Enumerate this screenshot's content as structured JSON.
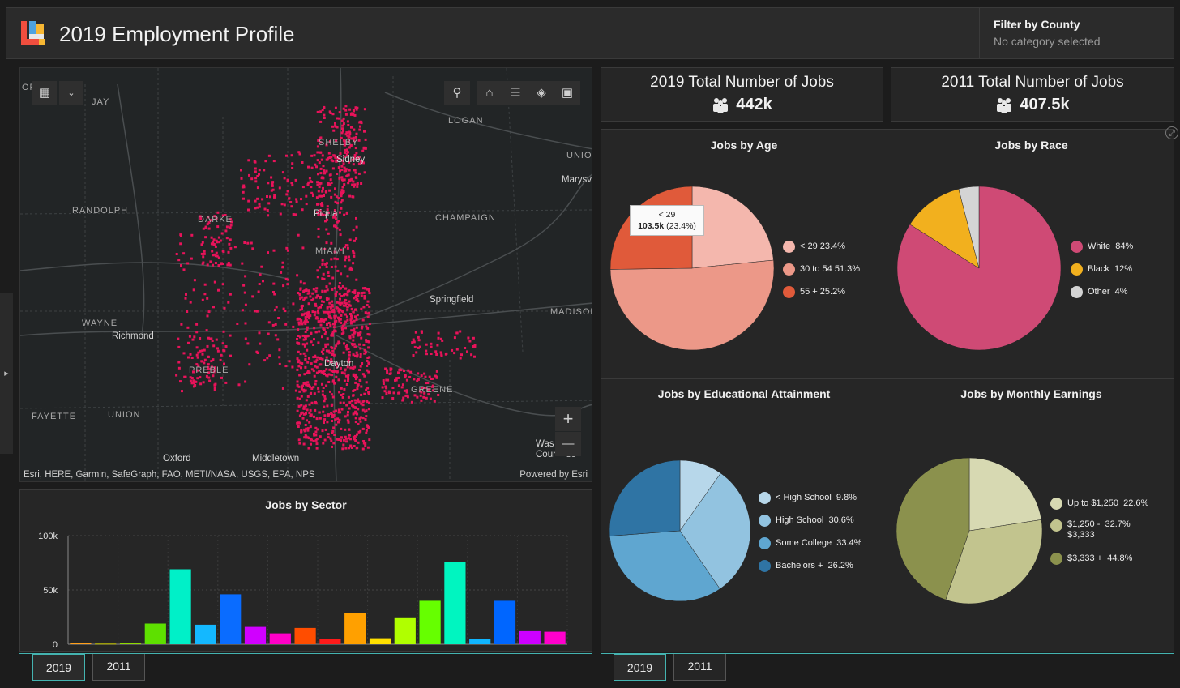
{
  "app": {
    "title": "2019 Employment Profile"
  },
  "filter": {
    "title": "Filter by County",
    "status": "No category selected"
  },
  "map": {
    "region_labels": [
      "JAY",
      "LOGAN",
      "UNION",
      "RANDOLPH",
      "DARKE",
      "CHAMPAIGN",
      "MIAMI",
      "SHELBY",
      "MADISON",
      "WAYNE",
      "PREBLE",
      "GREENE",
      "FAYETTE",
      "UNION"
    ],
    "city_labels": [
      "Sidney",
      "Piqua",
      "Marysv",
      "Springfield",
      "Richmond",
      "Dayton",
      "Oxford",
      "Middletown",
      "Was    on",
      "Cour    se"
    ],
    "attribution": "Esri, HERE, Garmin, SafeGraph, FAO, METI/NASA, USGS, EPA, NPS",
    "powered_by": "Powered by Esri",
    "corner_label": "ORD",
    "zoom_in": "+",
    "zoom_out": "—"
  },
  "kpi": {
    "jobs_2019": {
      "title": "2019 Total Number of Jobs",
      "value": "442k"
    },
    "jobs_2011": {
      "title": "2011 Total Number of Jobs",
      "value": "407.5k"
    }
  },
  "charts": {
    "age": {
      "title": "Jobs by Age",
      "legend": [
        {
          "label": "< 29",
          "pct": "23.4%",
          "color": "#f4b7ad"
        },
        {
          "label": "30 to 54",
          "pct": "51.3%",
          "color": "#ec9888"
        },
        {
          "label": "55 +",
          "pct": "25.2%",
          "color": "#e05a3a"
        }
      ],
      "tooltip": {
        "label": "< 29",
        "value": "103.5k",
        "pct": "(23.4%)"
      }
    },
    "race": {
      "title": "Jobs by Race",
      "legend": [
        {
          "label": "White",
          "pct": "84%",
          "color": "#cf4a75"
        },
        {
          "label": "Black",
          "pct": "12%",
          "color": "#f2b01e"
        },
        {
          "label": "Other",
          "pct": "4%",
          "color": "#d4d4d4"
        }
      ]
    },
    "education": {
      "title": "Jobs by Educational Attainment",
      "legend": [
        {
          "label": "< High School",
          "pct": "9.8%",
          "color": "#b7d7ea"
        },
        {
          "label": "High School",
          "pct": "30.6%",
          "color": "#92c3e0"
        },
        {
          "label": "Some College",
          "pct": "33.4%",
          "color": "#5fa6d0"
        },
        {
          "label": "Bachelors +",
          "pct": "26.2%",
          "color": "#2f74a4"
        }
      ]
    },
    "earnings": {
      "title": "Jobs by Monthly Earnings",
      "legend": [
        {
          "label": "Up to $1,250",
          "pct": "22.6%",
          "color": "#d7d9b2"
        },
        {
          "label": "$1,250 -",
          "label2": "$3,333",
          "pct": "32.7%",
          "color": "#c2c48e"
        },
        {
          "label": "$3,333 +",
          "pct": "44.8%",
          "color": "#8b914d"
        }
      ]
    },
    "sector": {
      "title": "Jobs by Sector",
      "y_ticks": [
        "100k",
        "50k",
        "0"
      ]
    }
  },
  "tabs_left": [
    {
      "label": "2019"
    },
    {
      "label": "2011"
    }
  ],
  "tabs_right": [
    {
      "label": "2019"
    },
    {
      "label": "2011"
    }
  ],
  "chart_data": [
    {
      "type": "pie",
      "title": "Jobs by Age",
      "categories": [
        "< 29",
        "30 to 54",
        "55 +"
      ],
      "values": [
        23.4,
        51.3,
        25.2
      ],
      "colors": [
        "#f4b7ad",
        "#ec9888",
        "#e05a3a"
      ]
    },
    {
      "type": "pie",
      "title": "Jobs by Race",
      "categories": [
        "White",
        "Black",
        "Other"
      ],
      "values": [
        84,
        12,
        4
      ],
      "colors": [
        "#cf4a75",
        "#f2b01e",
        "#d4d4d4"
      ]
    },
    {
      "type": "pie",
      "title": "Jobs by Educational Attainment",
      "categories": [
        "< High School",
        "High School",
        "Some College",
        "Bachelors +"
      ],
      "values": [
        9.8,
        30.6,
        33.4,
        26.2
      ],
      "colors": [
        "#b7d7ea",
        "#92c3e0",
        "#5fa6d0",
        "#2f74a4"
      ]
    },
    {
      "type": "pie",
      "title": "Jobs by Monthly Earnings",
      "categories": [
        "Up to $1,250",
        "$1,250 - $3,333",
        "$3,333 +"
      ],
      "values": [
        22.6,
        32.7,
        44.8
      ],
      "colors": [
        "#d7d9b2",
        "#c2c48e",
        "#8b914d"
      ]
    },
    {
      "type": "bar",
      "title": "Jobs by Sector",
      "ylim": [
        0,
        100000
      ],
      "values": [
        1500,
        500,
        1500,
        19000,
        69000,
        18000,
        46000,
        16000,
        10000,
        15000,
        4500,
        29000,
        5500,
        24000,
        40000,
        76000,
        5000,
        40000,
        12000,
        11500
      ],
      "colors": [
        "#ff9f1a",
        "#cfcf00",
        "#8ed900",
        "#5ee000",
        "#00f0c8",
        "#14b8ff",
        "#0a6cff",
        "#d000ff",
        "#ff00c8",
        "#ff4d00",
        "#ff1a1a",
        "#ffa000",
        "#ffe000",
        "#b0ff00",
        "#66ff00",
        "#00f5c0",
        "#10b5ff",
        "#0066ff",
        "#cc00ff",
        "#ff00cc"
      ]
    }
  ]
}
